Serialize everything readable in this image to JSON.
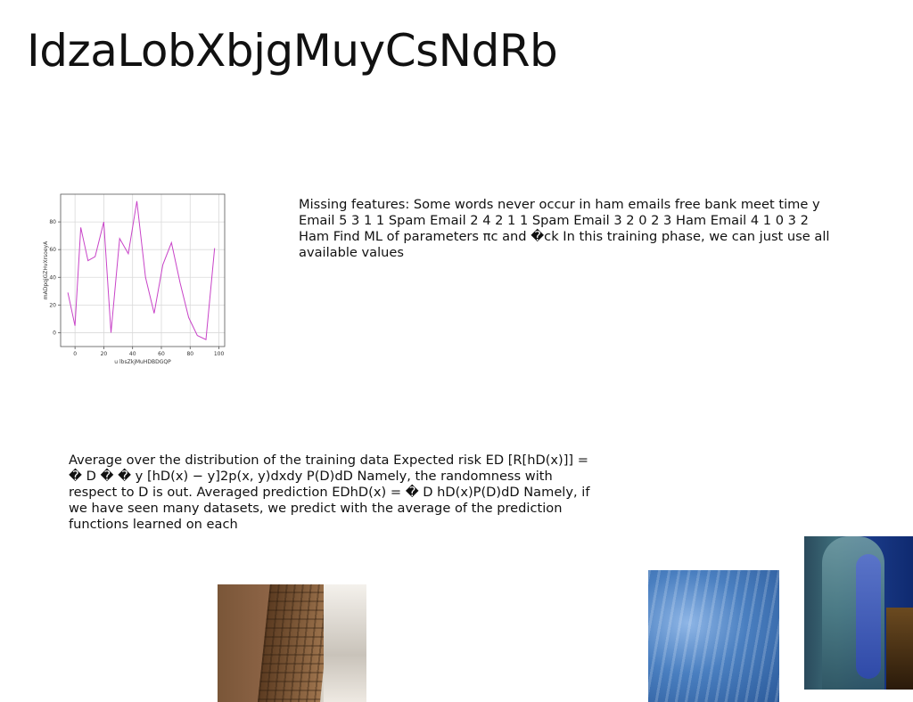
{
  "slide": {
    "title": "IdzaLobXbjgMuyCsNdRb"
  },
  "text_blocks": {
    "first": "Missing features: Some words never occur in ham emails free bank meet time y Email 5 3 1 1 Spam Email 2 4 2 1 1 Spam Email 3 2 0 2 3 Ham Email 4 1 0 3 2 Ham Find ML of parameters πc and �ck In this training phase, we can just use all available values",
    "second": "Average over the distribution of the training data Expected risk ED [R[hD(x)]] = � D � � y [hD(x) − y]2p(x, y)dxdy P(D)dD Namely, the randomness with respect to D is out. Averaged prediction EDhD(x) = � D hD(x)P(D)dD Namely, if we have seen many datasets, we predict with the average of the prediction functions learned on each"
  },
  "chart_data": {
    "type": "line",
    "title": "",
    "xlabel": "u lbsZkjMuHDBDGQP",
    "ylabel": "mADpqjGZHvXrsoeyA",
    "xlim": [
      -10,
      104
    ],
    "ylim": [
      -10,
      100
    ],
    "xticks": [
      0,
      20,
      40,
      60,
      80,
      100
    ],
    "yticks": [
      0,
      20,
      40,
      60,
      80
    ],
    "grid": true,
    "line_color": "#c844c8",
    "series": [
      {
        "x": [
          -5,
          0,
          4,
          9,
          14,
          20,
          25,
          31,
          37,
          43,
          49,
          55,
          61,
          67,
          73,
          79,
          85,
          91,
          97
        ],
        "y": [
          29,
          5,
          76,
          52,
          55,
          80,
          0,
          68,
          57,
          95,
          40,
          14,
          49,
          65,
          36,
          11,
          -2,
          -5,
          61
        ]
      }
    ]
  },
  "images": {
    "building": "building-photo",
    "water": "water-photo",
    "person": "person-photo"
  }
}
